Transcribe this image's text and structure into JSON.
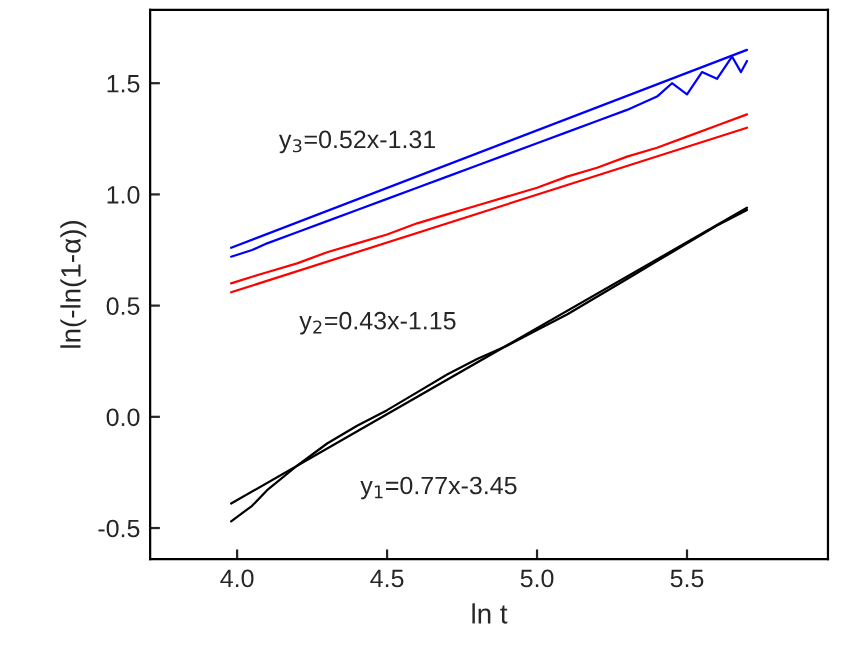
{
  "chart_data": {
    "type": "line",
    "xlabel": "ln t",
    "ylabel": "ln(-ln(1-α))",
    "xlim": [
      3.71,
      5.97
    ],
    "ylim": [
      -0.64,
      1.83
    ],
    "xticks": [
      {
        "value": 4.0,
        "label": "4.0"
      },
      4.5,
      {
        "value": 5.0,
        "label": "5.0"
      },
      5.5
    ],
    "yticks": [
      -0.5,
      {
        "value": 0.0,
        "label": "0.0"
      },
      0.5,
      {
        "value": 1.0,
        "label": "1.0"
      },
      1.5
    ],
    "grid": false,
    "legend": false,
    "marker": "none",
    "line_style": "solid",
    "series": [
      {
        "color": "#000000",
        "x": [
          3.98,
          4.05,
          4.1,
          4.2,
          4.3,
          4.4,
          4.5,
          4.6,
          4.7,
          4.8,
          4.9,
          5.0,
          5.1,
          5.2,
          5.3,
          5.4,
          5.5,
          5.6,
          5.7
        ],
        "values": [
          -0.47,
          -0.4,
          -0.33,
          -0.22,
          -0.12,
          -0.04,
          0.03,
          0.11,
          0.19,
          0.26,
          0.32,
          0.39,
          0.46,
          0.54,
          0.62,
          0.7,
          0.78,
          0.86,
          0.93
        ]
      },
      {
        "color": "#ff0000",
        "x": [
          3.98,
          4.05,
          4.1,
          4.2,
          4.3,
          4.4,
          4.5,
          4.6,
          4.7,
          4.8,
          4.9,
          5.0,
          5.1,
          5.2,
          5.3,
          5.4,
          5.5,
          5.6,
          5.7
        ],
        "values": [
          0.6,
          0.63,
          0.65,
          0.69,
          0.74,
          0.78,
          0.82,
          0.87,
          0.91,
          0.95,
          0.99,
          1.03,
          1.08,
          1.12,
          1.17,
          1.21,
          1.26,
          1.31,
          1.36
        ]
      },
      {
        "color": "#0000ff",
        "x": [
          3.98,
          4.05,
          4.1,
          4.2,
          4.3,
          4.4,
          4.5,
          4.6,
          4.7,
          4.8,
          4.9,
          5.0,
          5.1,
          5.2,
          5.3,
          5.4,
          5.45,
          5.5,
          5.55,
          5.6,
          5.65,
          5.68,
          5.7
        ],
        "values": [
          0.72,
          0.75,
          0.78,
          0.83,
          0.88,
          0.93,
          0.98,
          1.03,
          1.08,
          1.13,
          1.18,
          1.23,
          1.28,
          1.33,
          1.38,
          1.44,
          1.5,
          1.45,
          1.55,
          1.52,
          1.62,
          1.55,
          1.6
        ]
      },
      {
        "color": "#000000",
        "x": [
          3.98,
          5.7
        ],
        "values": [
          -0.39,
          0.94
        ]
      },
      {
        "color": "#ff0000",
        "x": [
          3.98,
          5.7
        ],
        "values": [
          0.56,
          1.3
        ]
      },
      {
        "color": "#0000ff",
        "x": [
          3.98,
          5.7
        ],
        "values": [
          0.76,
          1.65
        ]
      }
    ],
    "annotations": [
      "y$_{3}$=0.52x-1.31",
      "y$_{2}$=0.43x-1.15",
      "y$_{1}$=0.77x-3.45"
    ]
  }
}
